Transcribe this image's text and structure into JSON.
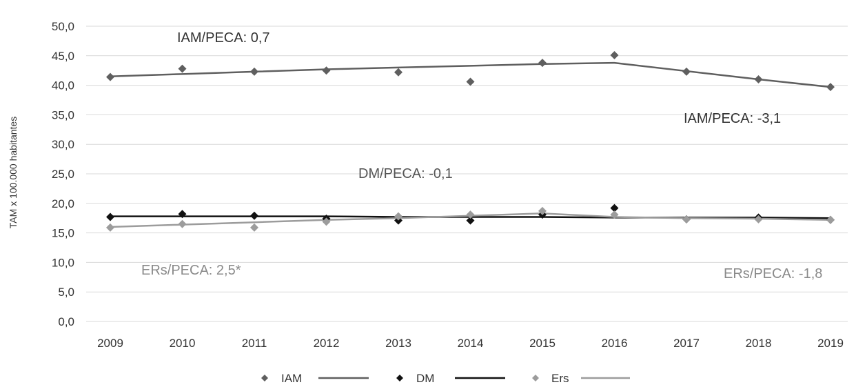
{
  "chart_data": {
    "type": "line",
    "ylabel": "TAM x 100.000 habitantes",
    "ylim": [
      0,
      50
    ],
    "y_ticks": [
      "0,0",
      "5,0",
      "10,0",
      "15,0",
      "20,0",
      "25,0",
      "30,0",
      "35,0",
      "40,0",
      "45,0",
      "50,0"
    ],
    "categories": [
      "2009",
      "2010",
      "2011",
      "2012",
      "2013",
      "2014",
      "2015",
      "2016",
      "2017",
      "2018",
      "2019"
    ],
    "grid": true,
    "legend_position": "bottom",
    "series": [
      {
        "name": "IAM",
        "color": "#5f5f5f",
        "values": [
          41.4,
          42.8,
          42.3,
          42.5,
          42.2,
          40.6,
          43.8,
          45.1,
          42.3,
          41.0,
          39.7
        ],
        "trend": [
          41.5,
          41.9,
          42.3,
          42.7,
          43.0,
          43.3,
          43.6,
          43.8,
          42.4,
          41.0,
          39.7
        ]
      },
      {
        "name": "DM",
        "color": "#111111",
        "values": [
          17.7,
          18.2,
          17.9,
          17.4,
          17.1,
          17.1,
          18.1,
          19.2,
          17.3,
          17.6,
          17.2
        ],
        "trend": [
          17.8,
          17.8,
          17.8,
          17.8,
          17.7,
          17.7,
          17.7,
          17.6,
          17.6,
          17.6,
          17.5
        ]
      },
      {
        "name": "Ers",
        "color": "#9c9c9c",
        "values": [
          15.9,
          16.5,
          15.9,
          16.9,
          17.8,
          18.1,
          18.7,
          18.1,
          17.3,
          17.3,
          17.2
        ],
        "trend": [
          16.0,
          16.4,
          16.8,
          17.2,
          17.5,
          17.9,
          18.3,
          17.7,
          17.5,
          17.4,
          17.2
        ]
      }
    ],
    "annotations": [
      {
        "text": "IAM/PECA: 0,7",
        "color": "#333333"
      },
      {
        "text": "IAM/PECA: -3,1",
        "color": "#333333"
      },
      {
        "text": "DM/PECA: -0,1",
        "color": "#555555"
      },
      {
        "text": "ERs/PECA: 2,5*",
        "color": "#8a8a8a"
      },
      {
        "text": "ERs/PECA: -1,8",
        "color": "#8a8a8a"
      }
    ]
  }
}
